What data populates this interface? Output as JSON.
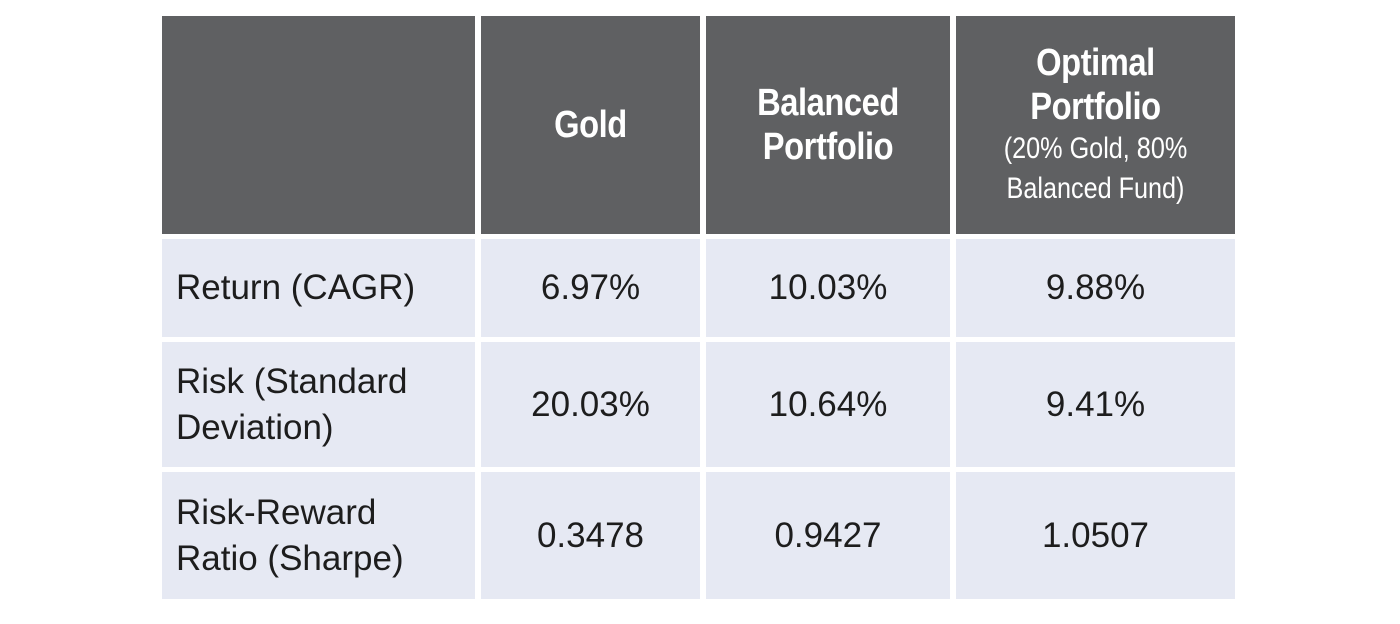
{
  "table": {
    "columns": [
      {
        "title": "",
        "subtitle": ""
      },
      {
        "title": "Gold",
        "subtitle": ""
      },
      {
        "title": "Balanced Portfolio",
        "subtitle": ""
      },
      {
        "title": "Optimal Portfolio",
        "subtitle": "(20% Gold, 80% Balanced Fund)"
      }
    ],
    "rows": [
      {
        "label": "Return (CAGR)",
        "values": [
          "6.97%",
          "10.03%",
          "9.88%"
        ]
      },
      {
        "label": "Risk (Standard Deviation)",
        "values": [
          "20.03%",
          "10.64%",
          "9.41%"
        ]
      },
      {
        "label": "Risk-Reward Ratio (Sharpe)",
        "values": [
          "0.3478",
          "0.9427",
          "1.0507"
        ]
      }
    ]
  },
  "colors": {
    "header_bg": "#5f6062",
    "header_text": "#ffffff",
    "cell_bg": "#e6e9f3",
    "cell_text": "#1d1d1d"
  }
}
